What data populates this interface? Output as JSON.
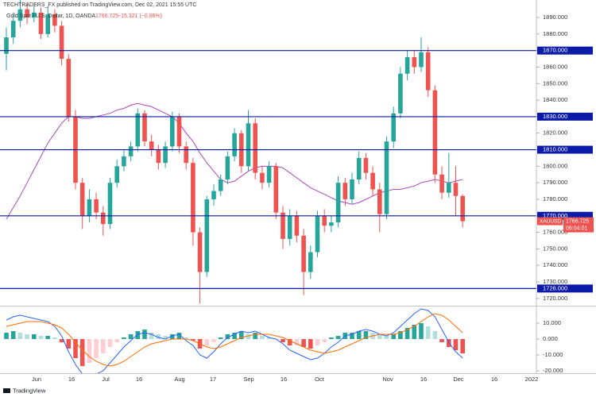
{
  "header": {
    "publisher": "TECHTRADERS_FX published on TradingView.com, Dec 02, 2021 15:55 UTC",
    "symbol": "Gold Spot / U.S. Dollar, 1D, OANDA",
    "change": "−15.321 (−0.86%)",
    "logo": "TradingView"
  },
  "chart_data": [
    {
      "type": "candlestick",
      "symbol_tag": "XAUUSD",
      "countdown": "06:04:01",
      "up_color": "#26a69a",
      "down_color": "#ef5350",
      "open": [
        1868,
        1878,
        1888,
        1895,
        1890,
        1893,
        1880,
        1892,
        1885,
        1865,
        1830,
        1790,
        1770,
        1780,
        1772,
        1765,
        1790,
        1800,
        1806,
        1812,
        1832,
        1815,
        1810,
        1802,
        1812,
        1830,
        1812,
        1802,
        1760,
        1736,
        1780,
        1785,
        1792,
        1806,
        1820,
        1800,
        1826,
        1796,
        1790,
        1800,
        1772,
        1756,
        1770,
        1758,
        1736,
        1748,
        1770,
        1764,
        1766,
        1790,
        1780,
        1792,
        1805,
        1796,
        1786,
        1771,
        1815,
        1832,
        1856,
        1866,
        1860,
        1869,
        1846,
        1795,
        1784,
        1790,
        1782
      ],
      "high": [
        1884,
        1893,
        1903,
        1899,
        1897,
        1896,
        1897,
        1895,
        1888,
        1868,
        1834,
        1793,
        1786,
        1784,
        1776,
        1793,
        1804,
        1810,
        1815,
        1835,
        1834,
        1819,
        1813,
        1815,
        1833,
        1832,
        1815,
        1805,
        1763,
        1782,
        1789,
        1795,
        1809,
        1823,
        1822,
        1834,
        1829,
        1800,
        1803,
        1802,
        1776,
        1774,
        1773,
        1762,
        1752,
        1773,
        1774,
        1770,
        1794,
        1793,
        1796,
        1809,
        1808,
        1800,
        1790,
        1818,
        1836,
        1860,
        1870,
        1870,
        1878,
        1872,
        1849,
        1800,
        1808,
        1800,
        1783
      ],
      "low": [
        1858,
        1874,
        1884,
        1886,
        1887,
        1877,
        1878,
        1881,
        1861,
        1827,
        1786,
        1762,
        1766,
        1768,
        1758,
        1762,
        1787,
        1797,
        1803,
        1809,
        1812,
        1806,
        1798,
        1799,
        1809,
        1808,
        1798,
        1752,
        1717,
        1733,
        1776,
        1782,
        1789,
        1803,
        1796,
        1797,
        1792,
        1786,
        1787,
        1768,
        1750,
        1752,
        1754,
        1722,
        1732,
        1745,
        1760,
        1760,
        1763,
        1776,
        1777,
        1789,
        1792,
        1782,
        1760,
        1768,
        1811,
        1829,
        1852,
        1856,
        1857,
        1842,
        1790,
        1780,
        1781,
        1770,
        1763
      ],
      "close": [
        1878,
        1888,
        1895,
        1890,
        1893,
        1880,
        1892,
        1885,
        1865,
        1830,
        1790,
        1770,
        1780,
        1772,
        1765,
        1790,
        1800,
        1806,
        1812,
        1832,
        1815,
        1810,
        1802,
        1812,
        1830,
        1812,
        1802,
        1760,
        1736,
        1780,
        1785,
        1792,
        1806,
        1820,
        1800,
        1826,
        1796,
        1790,
        1800,
        1772,
        1756,
        1770,
        1758,
        1736,
        1748,
        1770,
        1764,
        1766,
        1790,
        1780,
        1792,
        1805,
        1796,
        1786,
        1771,
        1815,
        1832,
        1856,
        1866,
        1860,
        1869,
        1846,
        1795,
        1784,
        1790,
        1782,
        1766.725
      ],
      "ma": {
        "color": "#ab47bc",
        "values": [
          1768,
          1775,
          1782,
          1790,
          1798,
          1806,
          1814,
          1820,
          1826,
          1830,
          1830,
          1829,
          1829,
          1830,
          1831,
          1832,
          1834,
          1835,
          1837,
          1838,
          1837,
          1836,
          1834,
          1832,
          1830,
          1826,
          1820,
          1815,
          1808,
          1802,
          1797,
          1792,
          1790,
          1791,
          1794,
          1797,
          1799,
          1800,
          1800,
          1800,
          1799,
          1796,
          1793,
          1790,
          1787,
          1785,
          1783,
          1781,
          1779,
          1778,
          1777,
          1778,
          1780,
          1782,
          1784,
          1785,
          1786,
          1786,
          1787,
          1788,
          1790,
          1791,
          1792,
          1791,
          1790,
          1791,
          1792
        ]
      },
      "levels_color": "#0c1aa8",
      "levels": [
        {
          "value": 1870,
          "label": "1870.000"
        },
        {
          "value": 1830,
          "label": "1830.000"
        },
        {
          "value": 1810,
          "label": "1810.000"
        },
        {
          "value": 1770,
          "label": "1770.000"
        },
        {
          "value": 1726,
          "label": "1726.000"
        }
      ],
      "ylim": [
        1715.6,
        1900.6
      ],
      "yticks": [
        {
          "value": 1720,
          "label": "1720.000"
        },
        {
          "value": 1730,
          "label": "1730.000"
        },
        {
          "value": 1740,
          "label": "1740.000"
        },
        {
          "value": 1750,
          "label": "1750.000"
        },
        {
          "value": 1760,
          "label": "1760.000"
        },
        {
          "value": 1770,
          "label": "1770.000"
        },
        {
          "value": 1780,
          "label": "1780.000"
        },
        {
          "value": 1790,
          "label": "1790.000"
        },
        {
          "value": 1800,
          "label": "1800.000"
        },
        {
          "value": 1810,
          "label": "1810.000"
        },
        {
          "value": 1820,
          "label": "1820.000"
        },
        {
          "value": 1830,
          "label": "1830.000"
        },
        {
          "value": 1840,
          "label": "1840.000"
        },
        {
          "value": 1850,
          "label": "1850.000"
        },
        {
          "value": 1860,
          "label": "1860.000"
        },
        {
          "value": 1870,
          "label": "1870.000"
        },
        {
          "value": 1880,
          "label": "1880.000"
        },
        {
          "value": 1890,
          "label": "1890.000"
        }
      ],
      "x_labels": [
        "Jun",
        "16",
        "Jul",
        "16",
        "Aug",
        "17",
        "Sep",
        "16",
        "Oct",
        "Nov",
        "16",
        "Dec",
        "16",
        "2022"
      ]
    },
    {
      "type": "bar",
      "pos_colors": [
        "#26a69a",
        "#b2dfdb"
      ],
      "neg_colors": [
        "#ffcdd2",
        "#ef5350"
      ],
      "values": [
        4,
        5,
        4,
        3,
        3,
        2,
        2,
        1,
        -2,
        -6,
        -12,
        -17,
        -15,
        -12,
        -9,
        -5,
        -2,
        1,
        3,
        5,
        6,
        4,
        3,
        2,
        3,
        4,
        1,
        -1,
        -6,
        -4,
        -2,
        1,
        3,
        4,
        5,
        3,
        4,
        2,
        1,
        0,
        -2,
        -4,
        -4,
        -5,
        -6,
        -4,
        -2,
        1,
        2,
        4,
        4,
        5,
        5,
        4,
        3,
        2,
        3,
        5,
        7,
        9,
        10,
        8,
        5,
        -2,
        -5,
        -7,
        -9
      ],
      "lines": [
        {
          "color": "#2962ff",
          "values": [
            12,
            14,
            15,
            14,
            13,
            12,
            11,
            8,
            2,
            -8,
            -16,
            -22,
            -23,
            -22,
            -20,
            -15,
            -10,
            -5,
            -1,
            3,
            4,
            3,
            1,
            0,
            2,
            3,
            -1,
            -4,
            -10,
            -12,
            -8,
            -3,
            1,
            3,
            5,
            4,
            5,
            3,
            1,
            0,
            -3,
            -7,
            -9,
            -11,
            -13,
            -12,
            -9,
            -5,
            -2,
            2,
            3,
            5,
            6,
            5,
            3,
            2,
            4,
            8,
            12,
            16,
            19,
            18,
            14,
            6,
            -2,
            -8,
            -12
          ]
        },
        {
          "color": "#ff6d00",
          "values": [
            8,
            9,
            10,
            11,
            11,
            11,
            10,
            9,
            7,
            3,
            -2,
            -7,
            -11,
            -14,
            -16,
            -17,
            -16,
            -14,
            -11,
            -8,
            -5,
            -3,
            -2,
            -1,
            0,
            0,
            0,
            -1,
            -3,
            -5,
            -6,
            -5,
            -3,
            -1,
            1,
            2,
            3,
            3,
            3,
            2,
            1,
            -1,
            -3,
            -5,
            -7,
            -8,
            -9,
            -8,
            -7,
            -5,
            -3,
            -1,
            1,
            2,
            3,
            3,
            3,
            4,
            6,
            8,
            11,
            14,
            16,
            15,
            12,
            8,
            4
          ]
        }
      ],
      "ylim": [
        -21.5,
        21
      ],
      "yticks": [
        {
          "value": 10,
          "label": "10.000"
        },
        {
          "value": 0,
          "label": "0.000"
        },
        {
          "value": -10,
          "label": "-10.000"
        },
        {
          "value": -20,
          "label": "-20.000"
        }
      ]
    }
  ]
}
